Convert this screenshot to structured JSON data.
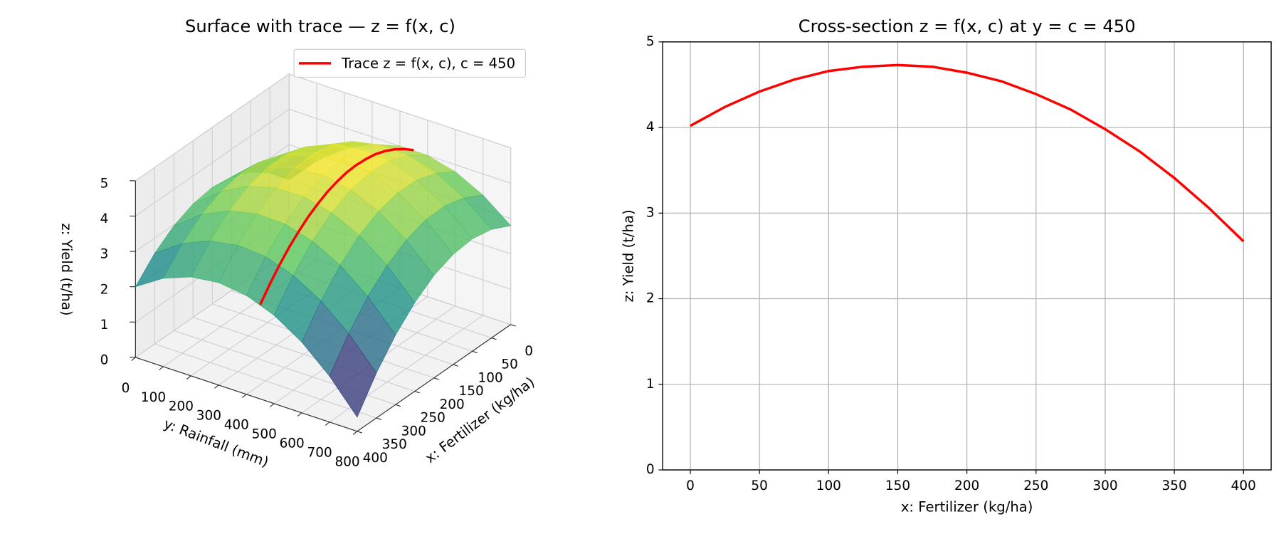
{
  "chart_data": [
    {
      "type": "surface",
      "title": "Surface with trace  —  z = f(x, c)",
      "xlabel": "x: Fertilizer (kg/ha)",
      "ylabel": "y: Rainfall (mm)",
      "zlabel": "z: Yield (t/ha)",
      "colormap": "viridis",
      "x": [
        0,
        50,
        100,
        150,
        200,
        250,
        300,
        350,
        400
      ],
      "y": [
        0,
        100,
        200,
        300,
        400,
        500,
        600,
        700,
        800
      ],
      "z": [
        [
          2.0,
          2.8,
          3.4,
          3.8,
          4.0,
          4.0,
          3.8,
          3.4,
          2.8
        ],
        [
          2.57,
          3.33,
          3.89,
          4.25,
          4.41,
          4.38,
          4.14,
          3.7,
          3.07
        ],
        [
          2.98,
          3.7,
          4.22,
          4.55,
          4.67,
          4.6,
          4.32,
          3.85,
          3.18
        ],
        [
          3.22,
          3.9,
          4.39,
          4.68,
          4.76,
          4.65,
          4.34,
          3.83,
          3.12
        ],
        [
          3.3,
          3.94,
          4.39,
          4.64,
          4.69,
          4.54,
          4.19,
          3.64,
          2.9
        ],
        [
          3.21,
          3.82,
          4.24,
          4.45,
          4.46,
          4.27,
          3.89,
          3.3,
          2.51
        ],
        [
          2.97,
          3.55,
          3.92,
          4.09,
          4.07,
          3.84,
          3.42,
          2.8,
          1.97
        ],
        [
          2.57,
          3.11,
          3.44,
          3.58,
          3.52,
          3.25,
          2.79,
          2.13,
          1.27
        ],
        [
          2.0,
          2.5,
          2.8,
          2.9,
          2.8,
          2.5,
          2.0,
          1.3,
          0.4
        ]
      ],
      "trace": {
        "name": "Trace z = f(x, c), c = 450",
        "color": "#ff0000",
        "y": 450,
        "x": [
          0,
          25,
          50,
          75,
          100,
          125,
          150,
          175,
          200,
          225,
          250,
          275,
          300,
          325,
          350,
          375,
          400
        ],
        "values": [
          4.02,
          4.24,
          4.42,
          4.56,
          4.66,
          4.71,
          4.73,
          4.71,
          4.64,
          4.54,
          4.39,
          4.21,
          3.98,
          3.72,
          3.41,
          3.06,
          2.67
        ]
      },
      "xlim": [
        0,
        400
      ],
      "ylim": [
        0,
        800
      ],
      "zlim": [
        0,
        5
      ],
      "xticks": [
        0,
        50,
        100,
        150,
        200,
        250,
        300,
        350,
        400
      ],
      "yticks": [
        0,
        100,
        200,
        300,
        400,
        500,
        600,
        700,
        800
      ],
      "zticks": [
        0,
        1,
        2,
        3,
        4,
        5
      ],
      "grid": true
    },
    {
      "type": "line",
      "title": "Cross-section z = f(x, c) at y = c = 450",
      "xlabel": "x: Fertilizer (kg/ha)",
      "ylabel": "z: Yield (t/ha)",
      "x": [
        0,
        25,
        50,
        75,
        100,
        125,
        150,
        175,
        200,
        225,
        250,
        275,
        300,
        325,
        350,
        375,
        400
      ],
      "series": [
        {
          "color": "#ff0000",
          "values": [
            4.02,
            4.24,
            4.42,
            4.56,
            4.66,
            4.71,
            4.73,
            4.71,
            4.64,
            4.54,
            4.39,
            4.21,
            3.98,
            3.72,
            3.41,
            3.06,
            2.67
          ]
        }
      ],
      "xlim": [
        -20,
        420
      ],
      "ylim": [
        0,
        5
      ],
      "xticks": [
        0,
        50,
        100,
        150,
        200,
        250,
        300,
        350,
        400
      ],
      "yticks": [
        0,
        1,
        2,
        3,
        4,
        5
      ],
      "grid": true
    }
  ]
}
